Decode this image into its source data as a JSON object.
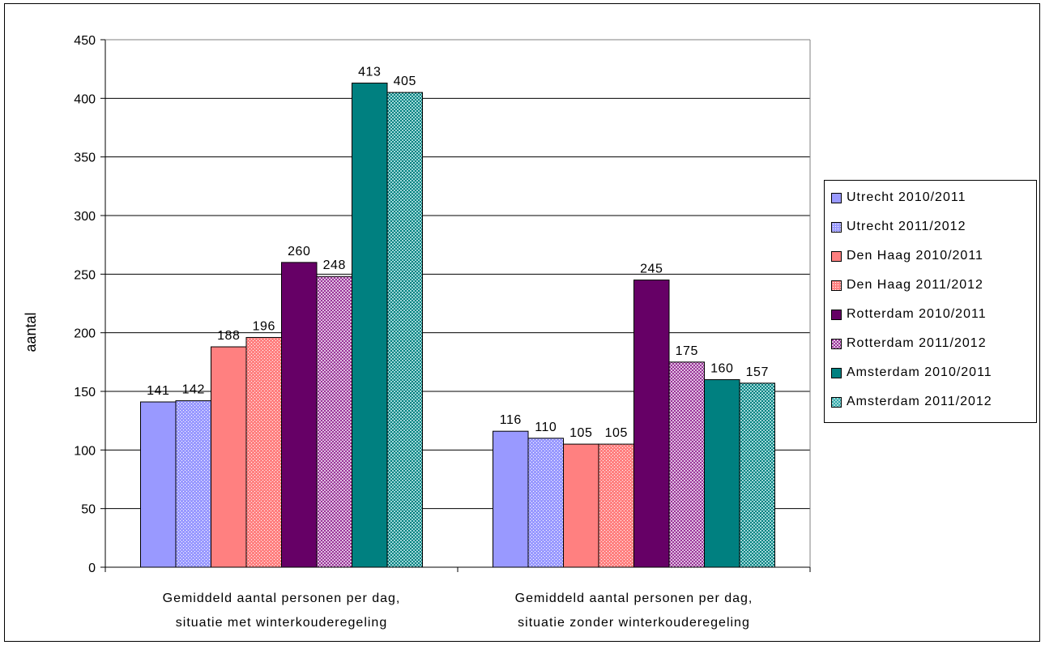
{
  "chart_data": {
    "type": "bar",
    "ylabel": "aantal",
    "xlabel": "",
    "ylim": [
      0,
      450
    ],
    "yticks": [
      0,
      50,
      100,
      150,
      200,
      250,
      300,
      350,
      400,
      450
    ],
    "categories": [
      "Gemiddeld aantal personen per dag, situatie met winterkouderegeling",
      "Gemiddeld aantal personen per dag, situatie zonder winterkouderegeling"
    ],
    "category_lines": [
      [
        "Gemiddeld aantal personen per dag,",
        "situatie met winterkouderegeling"
      ],
      [
        "Gemiddeld aantal personen per dag,",
        "situatie zonder winterkouderegeling"
      ]
    ],
    "legend_position": "right",
    "grid": "horizontal",
    "data_labels": true,
    "series": [
      {
        "name": "Utrecht 2010/2011",
        "values": [
          141,
          116
        ],
        "color": "#9999ff",
        "pattern": "solid"
      },
      {
        "name": "Utrecht 2011/2012",
        "values": [
          142,
          110
        ],
        "color": "#9999ff",
        "pattern": "dotted"
      },
      {
        "name": "Den Haag 2010/2011",
        "values": [
          188,
          105
        ],
        "color": "#ff8080",
        "pattern": "solid"
      },
      {
        "name": "Den Haag 2011/2012",
        "values": [
          196,
          105
        ],
        "color": "#ff8080",
        "pattern": "dotted"
      },
      {
        "name": "Rotterdam 2010/2011",
        "values": [
          260,
          245
        ],
        "color": "#660066",
        "pattern": "solid"
      },
      {
        "name": "Rotterdam 2011/2012",
        "values": [
          248,
          175
        ],
        "color": "#993399",
        "pattern": "checkered"
      },
      {
        "name": "Amsterdam 2010/2011",
        "values": [
          413,
          160
        ],
        "color": "#008080",
        "pattern": "solid"
      },
      {
        "name": "Amsterdam 2011/2012",
        "values": [
          405,
          157
        ],
        "color": "#33aaaa",
        "pattern": "checkered"
      }
    ]
  }
}
